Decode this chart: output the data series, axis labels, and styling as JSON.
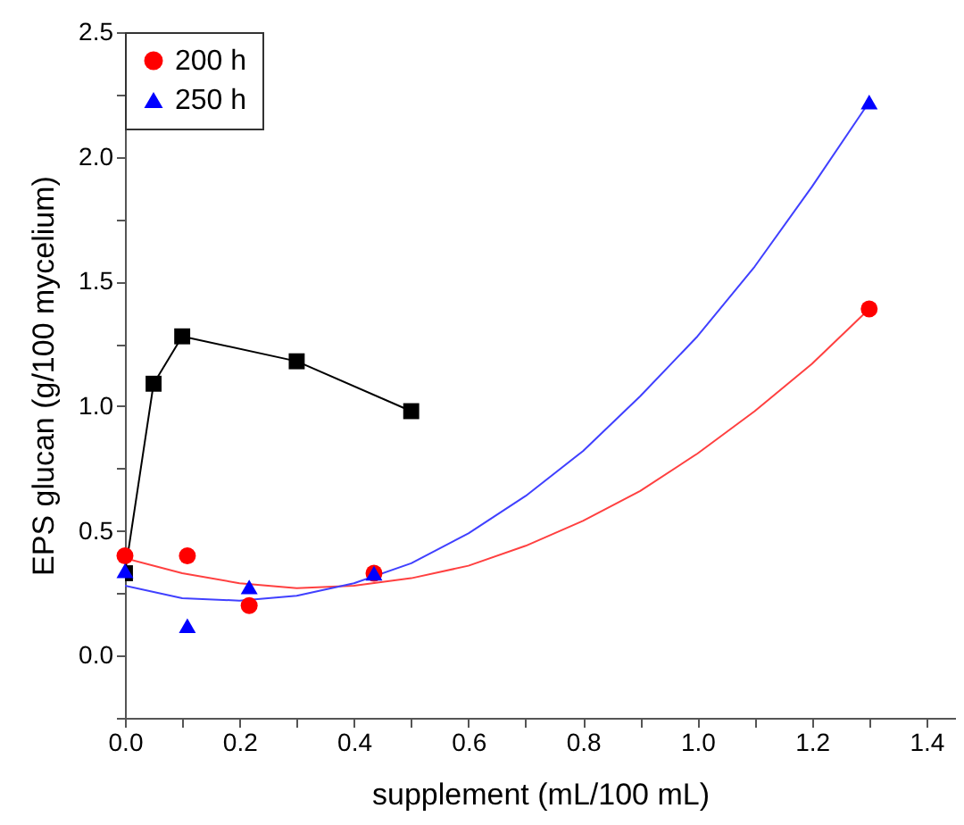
{
  "chart_data": {
    "type": "line",
    "xlabel": "supplement (mL/100 mL)",
    "ylabel": "EPS glucan (g/100 mycelium)",
    "xlim": [
      0,
      1.45
    ],
    "ylim": [
      -0.25,
      2.5
    ],
    "xticks": [
      {
        "value": 0,
        "label": "0.0"
      },
      {
        "value": 0.1,
        "label": null
      },
      {
        "value": 0.2,
        "label": "0.2"
      },
      {
        "value": 0.3,
        "label": null
      },
      {
        "value": 0.4,
        "label": "0.4"
      },
      {
        "value": 0.5,
        "label": null
      },
      {
        "value": 0.6,
        "label": "0.6"
      },
      {
        "value": 0.7,
        "label": null
      },
      {
        "value": 0.8,
        "label": "0.8"
      },
      {
        "value": 0.9,
        "label": null
      },
      {
        "value": 1,
        "label": "1.0"
      },
      {
        "value": 1.1,
        "label": null
      },
      {
        "value": 1.2,
        "label": "1.2"
      },
      {
        "value": 1.3,
        "label": null
      },
      {
        "value": 1.4,
        "label": "1.4"
      }
    ],
    "yticks": [
      {
        "value": -0.25,
        "label": null
      },
      {
        "value": 0,
        "label": "0.0"
      },
      {
        "value": 0.25,
        "label": null
      },
      {
        "value": 0.5,
        "label": "0.5"
      },
      {
        "value": 0.75,
        "label": null
      },
      {
        "value": 1,
        "label": "1.0"
      },
      {
        "value": 1.25,
        "label": null
      },
      {
        "value": 1.5,
        "label": "1.5"
      },
      {
        "value": 1.75,
        "label": null
      },
      {
        "value": 2,
        "label": "2.0"
      },
      {
        "value": 2.25,
        "label": null
      },
      {
        "value": 2.5,
        "label": "2.5"
      }
    ],
    "legend": "top left",
    "grid": false,
    "series": [
      {
        "type": "line",
        "color": "#000000",
        "marker": "square",
        "line_style": "solid",
        "x": [
          0,
          0.05,
          0.1,
          0.3,
          0.5
        ],
        "values": [
          0.33,
          1.09,
          1.28,
          1.18,
          0.98
        ]
      },
      {
        "color": "#ff4040",
        "marker": "none",
        "line_style": "solid",
        "x": [
          0,
          0.1,
          0.2,
          0.3,
          0.4,
          0.5,
          0.6,
          0.7,
          0.8,
          0.9,
          1,
          1.1,
          1.2,
          1.3
        ],
        "values": [
          0.39,
          0.33,
          0.29,
          0.27,
          0.28,
          0.31,
          0.36,
          0.44,
          0.54,
          0.66,
          0.81,
          0.98,
          1.17,
          1.39
        ]
      },
      {
        "type": "line",
        "color": "#4040ff",
        "marker": "none",
        "line_style": "solid",
        "x": [
          0,
          0.1,
          0.2,
          0.3,
          0.4,
          0.5,
          0.6,
          0.7,
          0.8,
          0.9,
          1,
          1.1,
          1.2,
          1.3
        ],
        "values": [
          0.28,
          0.23,
          0.22,
          0.24,
          0.29,
          0.37,
          0.49,
          0.64,
          0.82,
          1.04,
          1.28,
          1.56,
          1.88,
          2.22
        ]
      },
      {
        "type": "scatter",
        "name": "200 h",
        "color": "#ff0000",
        "marker": "circle",
        "x": [
          0,
          0.109,
          0.217,
          0.435,
          1.3
        ],
        "values": [
          0.4,
          0.4,
          0.2,
          0.33,
          1.39
        ]
      },
      {
        "type": "scatter",
        "name": "250 h",
        "color": "#0000ff",
        "marker": "triangle",
        "x": [
          0,
          0.109,
          0.217,
          0.435,
          1.3
        ],
        "values": [
          0.34,
          0.12,
          0.275,
          0.33,
          2.22
        ]
      }
    ]
  }
}
